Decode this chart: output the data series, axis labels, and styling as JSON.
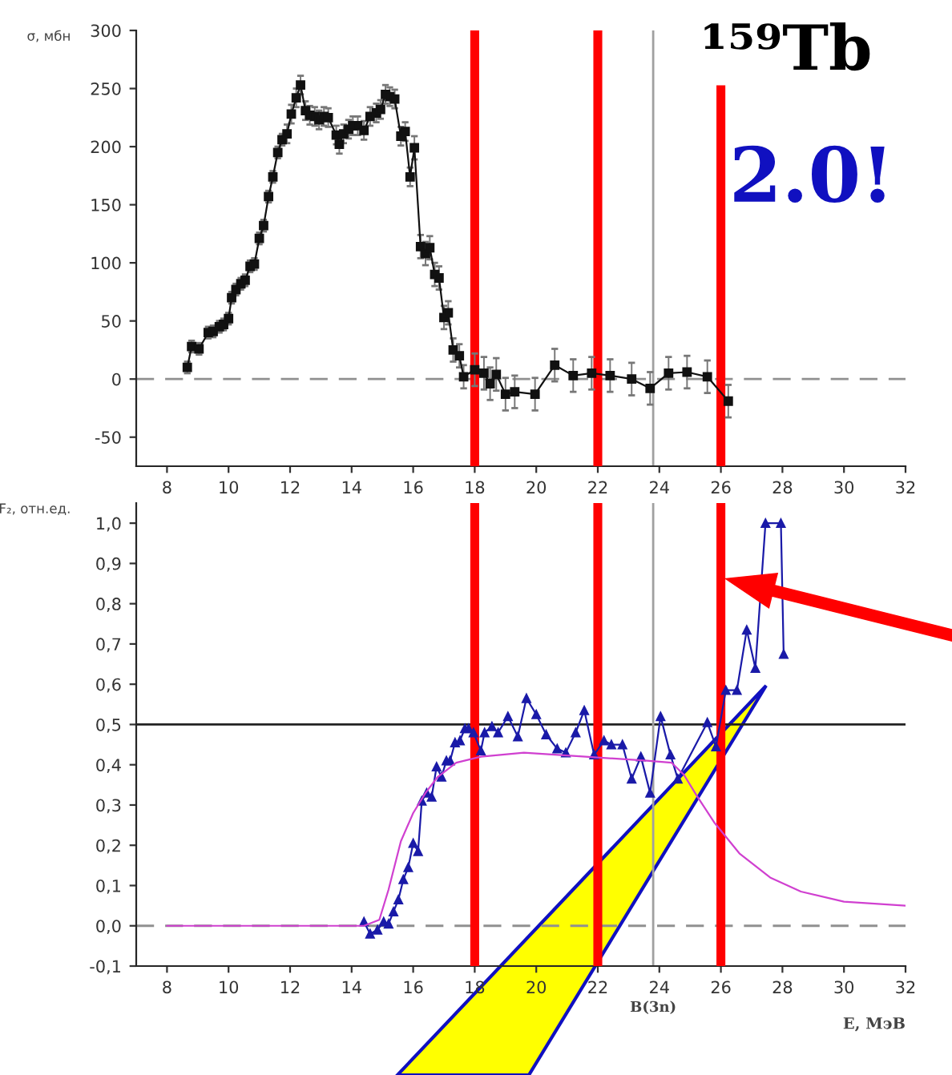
{
  "chart_data": [
    {
      "type": "line",
      "title": "¹⁵⁹Tb",
      "ylabel": "σ, мбн",
      "marker": "square",
      "grid": false,
      "legend": false,
      "xlim": [
        7,
        32
      ],
      "xticks": [
        8,
        10,
        12,
        14,
        16,
        18,
        20,
        22,
        24,
        26,
        28,
        30,
        32
      ],
      "ylim": [
        -75,
        300
      ],
      "yticks": [
        -50,
        0,
        50,
        100,
        150,
        200,
        250,
        300
      ],
      "series": [
        {
          "color": "#111111",
          "x": [
            8.66,
            8.8,
            9.04,
            9.34,
            9.5,
            9.7,
            9.84,
            10.0,
            10.1,
            10.24,
            10.4,
            10.54,
            10.7,
            10.84,
            11.0,
            11.14,
            11.3,
            11.44,
            11.6,
            11.74,
            11.9,
            12.04,
            12.2,
            12.34,
            12.5,
            12.64,
            12.8,
            12.94,
            13.1,
            13.24,
            13.5,
            13.6,
            13.74,
            13.9,
            14.04,
            14.2,
            14.4,
            14.6,
            14.8,
            14.94,
            15.1,
            15.24,
            15.4,
            15.6,
            15.74,
            15.9,
            16.04,
            16.24,
            16.4,
            16.54,
            16.7,
            16.84,
            17.0,
            17.14,
            17.3,
            17.5,
            17.64,
            18.0,
            18.3,
            18.5,
            18.7,
            19.0,
            19.3,
            19.96,
            20.6,
            21.2,
            21.8,
            22.4,
            23.1,
            23.7,
            24.3,
            24.9,
            25.56,
            26.24
          ],
          "values": [
            10,
            28,
            26,
            40,
            41,
            45,
            47,
            52,
            70,
            77,
            82,
            85,
            97,
            99,
            121,
            132,
            157,
            174,
            195,
            206,
            211,
            228,
            242,
            253,
            231,
            227,
            226,
            223,
            226,
            225,
            210,
            202,
            211,
            215,
            218,
            218,
            214,
            226,
            229,
            232,
            245,
            243,
            241,
            209,
            213,
            174,
            199,
            114,
            108,
            113,
            90,
            87,
            53,
            57,
            25,
            20,
            2,
            8,
            5,
            -4,
            4,
            -13,
            -11,
            -13,
            12,
            3,
            5,
            3,
            0,
            -8,
            5,
            6,
            2,
            -19
          ],
          "errors": [
            5,
            5,
            5,
            5,
            5,
            5,
            5,
            5,
            5,
            5,
            5,
            5,
            5,
            5,
            5,
            5,
            5,
            5,
            5,
            5,
            8,
            8,
            8,
            8,
            8,
            8,
            8,
            8,
            8,
            8,
            8,
            8,
            8,
            8,
            8,
            8,
            8,
            8,
            8,
            8,
            8,
            8,
            8,
            8,
            8,
            8,
            10,
            10,
            10,
            10,
            10,
            10,
            10,
            10,
            10,
            10,
            10,
            14,
            14,
            14,
            14,
            14,
            14,
            14,
            14,
            14,
            14,
            14,
            14,
            14,
            14,
            14,
            14,
            14
          ]
        }
      ],
      "ref_lines": [
        {
          "axis": "y",
          "value": 0,
          "color": "#909090",
          "line_style": "dashed"
        },
        {
          "axis": "x",
          "value": 23.8,
          "color": "#a0a0a0",
          "line_style": "solid"
        },
        {
          "axis": "x",
          "value": 18,
          "color": "#ff0000",
          "line_style": "solid"
        },
        {
          "axis": "x",
          "value": 22,
          "color": "#ff0000",
          "line_style": "solid"
        },
        {
          "axis": "x",
          "value": 26,
          "color": "#ff0000",
          "line_style": "solid"
        }
      ],
      "annotations": [
        "2.0!"
      ]
    },
    {
      "type": "line",
      "ylabel": "F₂, отн.ед.",
      "xlabel": "E, МэВ",
      "grid": false,
      "legend": false,
      "xlim": [
        7,
        32
      ],
      "xticks": [
        8,
        10,
        12,
        14,
        16,
        18,
        20,
        22,
        24,
        26,
        28,
        30,
        32
      ],
      "ylim": [
        -0.1,
        1.05
      ],
      "yticks": [
        {
          "value": -0.1,
          "label": "-0,1"
        },
        {
          "value": 0,
          "label": "0,0"
        },
        {
          "value": 0.1,
          "label": "0,1"
        },
        {
          "value": 0.2,
          "label": "0,2"
        },
        {
          "value": 0.3,
          "label": "0,3"
        },
        {
          "value": 0.4,
          "label": "0,4"
        },
        {
          "value": 0.5,
          "label": "0,5"
        },
        {
          "value": 0.6,
          "label": "0,6"
        },
        {
          "value": 0.7,
          "label": "0,7"
        },
        {
          "value": 0.8,
          "label": "0,8"
        },
        {
          "value": 0.9,
          "label": "0,9"
        },
        {
          "value": 1.0,
          "label": "1,0"
        }
      ],
      "series": [
        {
          "color": "#1a1aa8",
          "marker": "triangle",
          "x": [
            14.4,
            14.6,
            14.84,
            15.04,
            15.2,
            15.36,
            15.52,
            15.68,
            15.84,
            16.0,
            16.16,
            16.28,
            16.44,
            16.6,
            16.76,
            16.92,
            17.08,
            17.2,
            17.36,
            17.52,
            17.68,
            17.8,
            17.96,
            18.2,
            18.32,
            18.56,
            18.76,
            19.08,
            19.4,
            19.68,
            20.0,
            20.32,
            20.68,
            20.96,
            21.28,
            21.56,
            21.88,
            22.2,
            22.44,
            22.8,
            23.1,
            23.4,
            23.7,
            24.04,
            24.36,
            24.6,
            25.56,
            25.84,
            26.16,
            26.52,
            26.84,
            27.12,
            27.45,
            27.95,
            28.04
          ],
          "values": [
            0.01,
            -0.02,
            -0.01,
            0.01,
            0.005,
            0.035,
            0.065,
            0.115,
            0.145,
            0.205,
            0.185,
            0.31,
            0.33,
            0.32,
            0.395,
            0.37,
            0.41,
            0.41,
            0.455,
            0.46,
            0.49,
            0.49,
            0.48,
            0.435,
            0.48,
            0.495,
            0.48,
            0.52,
            0.47,
            0.565,
            0.525,
            0.475,
            0.44,
            0.43,
            0.48,
            0.535,
            0.425,
            0.46,
            0.45,
            0.45,
            0.365,
            0.42,
            0.33,
            0.52,
            0.425,
            0.365,
            0.505,
            0.445,
            0.585,
            0.585,
            0.735,
            0.64,
            1.0,
            1.0,
            0.675
          ]
        },
        {
          "color": "#d040d0",
          "marker": "none",
          "x": [
            8,
            14.4,
            14.9,
            15.2,
            15.6,
            16.0,
            16.4,
            16.8,
            17.4,
            18.2,
            19.6,
            21.6,
            23.6,
            24.4,
            24.8,
            25.2,
            25.8,
            26.6,
            27.6,
            28.6,
            30,
            32
          ],
          "values": [
            0,
            0,
            0.015,
            0.09,
            0.21,
            0.28,
            0.33,
            0.37,
            0.405,
            0.42,
            0.43,
            0.42,
            0.41,
            0.405,
            0.375,
            0.325,
            0.255,
            0.18,
            0.12,
            0.085,
            0.06,
            0.05
          ]
        }
      ],
      "ref_lines": [
        {
          "axis": "y",
          "value": 0,
          "color": "#909090",
          "line_style": "dashed"
        },
        {
          "axis": "y",
          "value": 0.5,
          "color": "#222222",
          "line_style": "solid"
        },
        {
          "axis": "x",
          "value": 23.8,
          "label": "B(3n)",
          "color": "#a0a0a0",
          "line_style": "solid"
        },
        {
          "axis": "x",
          "value": 18,
          "color": "#ff0000",
          "line_style": "solid"
        },
        {
          "axis": "x",
          "value": 22,
          "color": "#ff0000",
          "line_style": "solid"
        },
        {
          "axis": "x",
          "value": 26,
          "color": "#ff0000",
          "line_style": "solid"
        }
      ]
    }
  ]
}
